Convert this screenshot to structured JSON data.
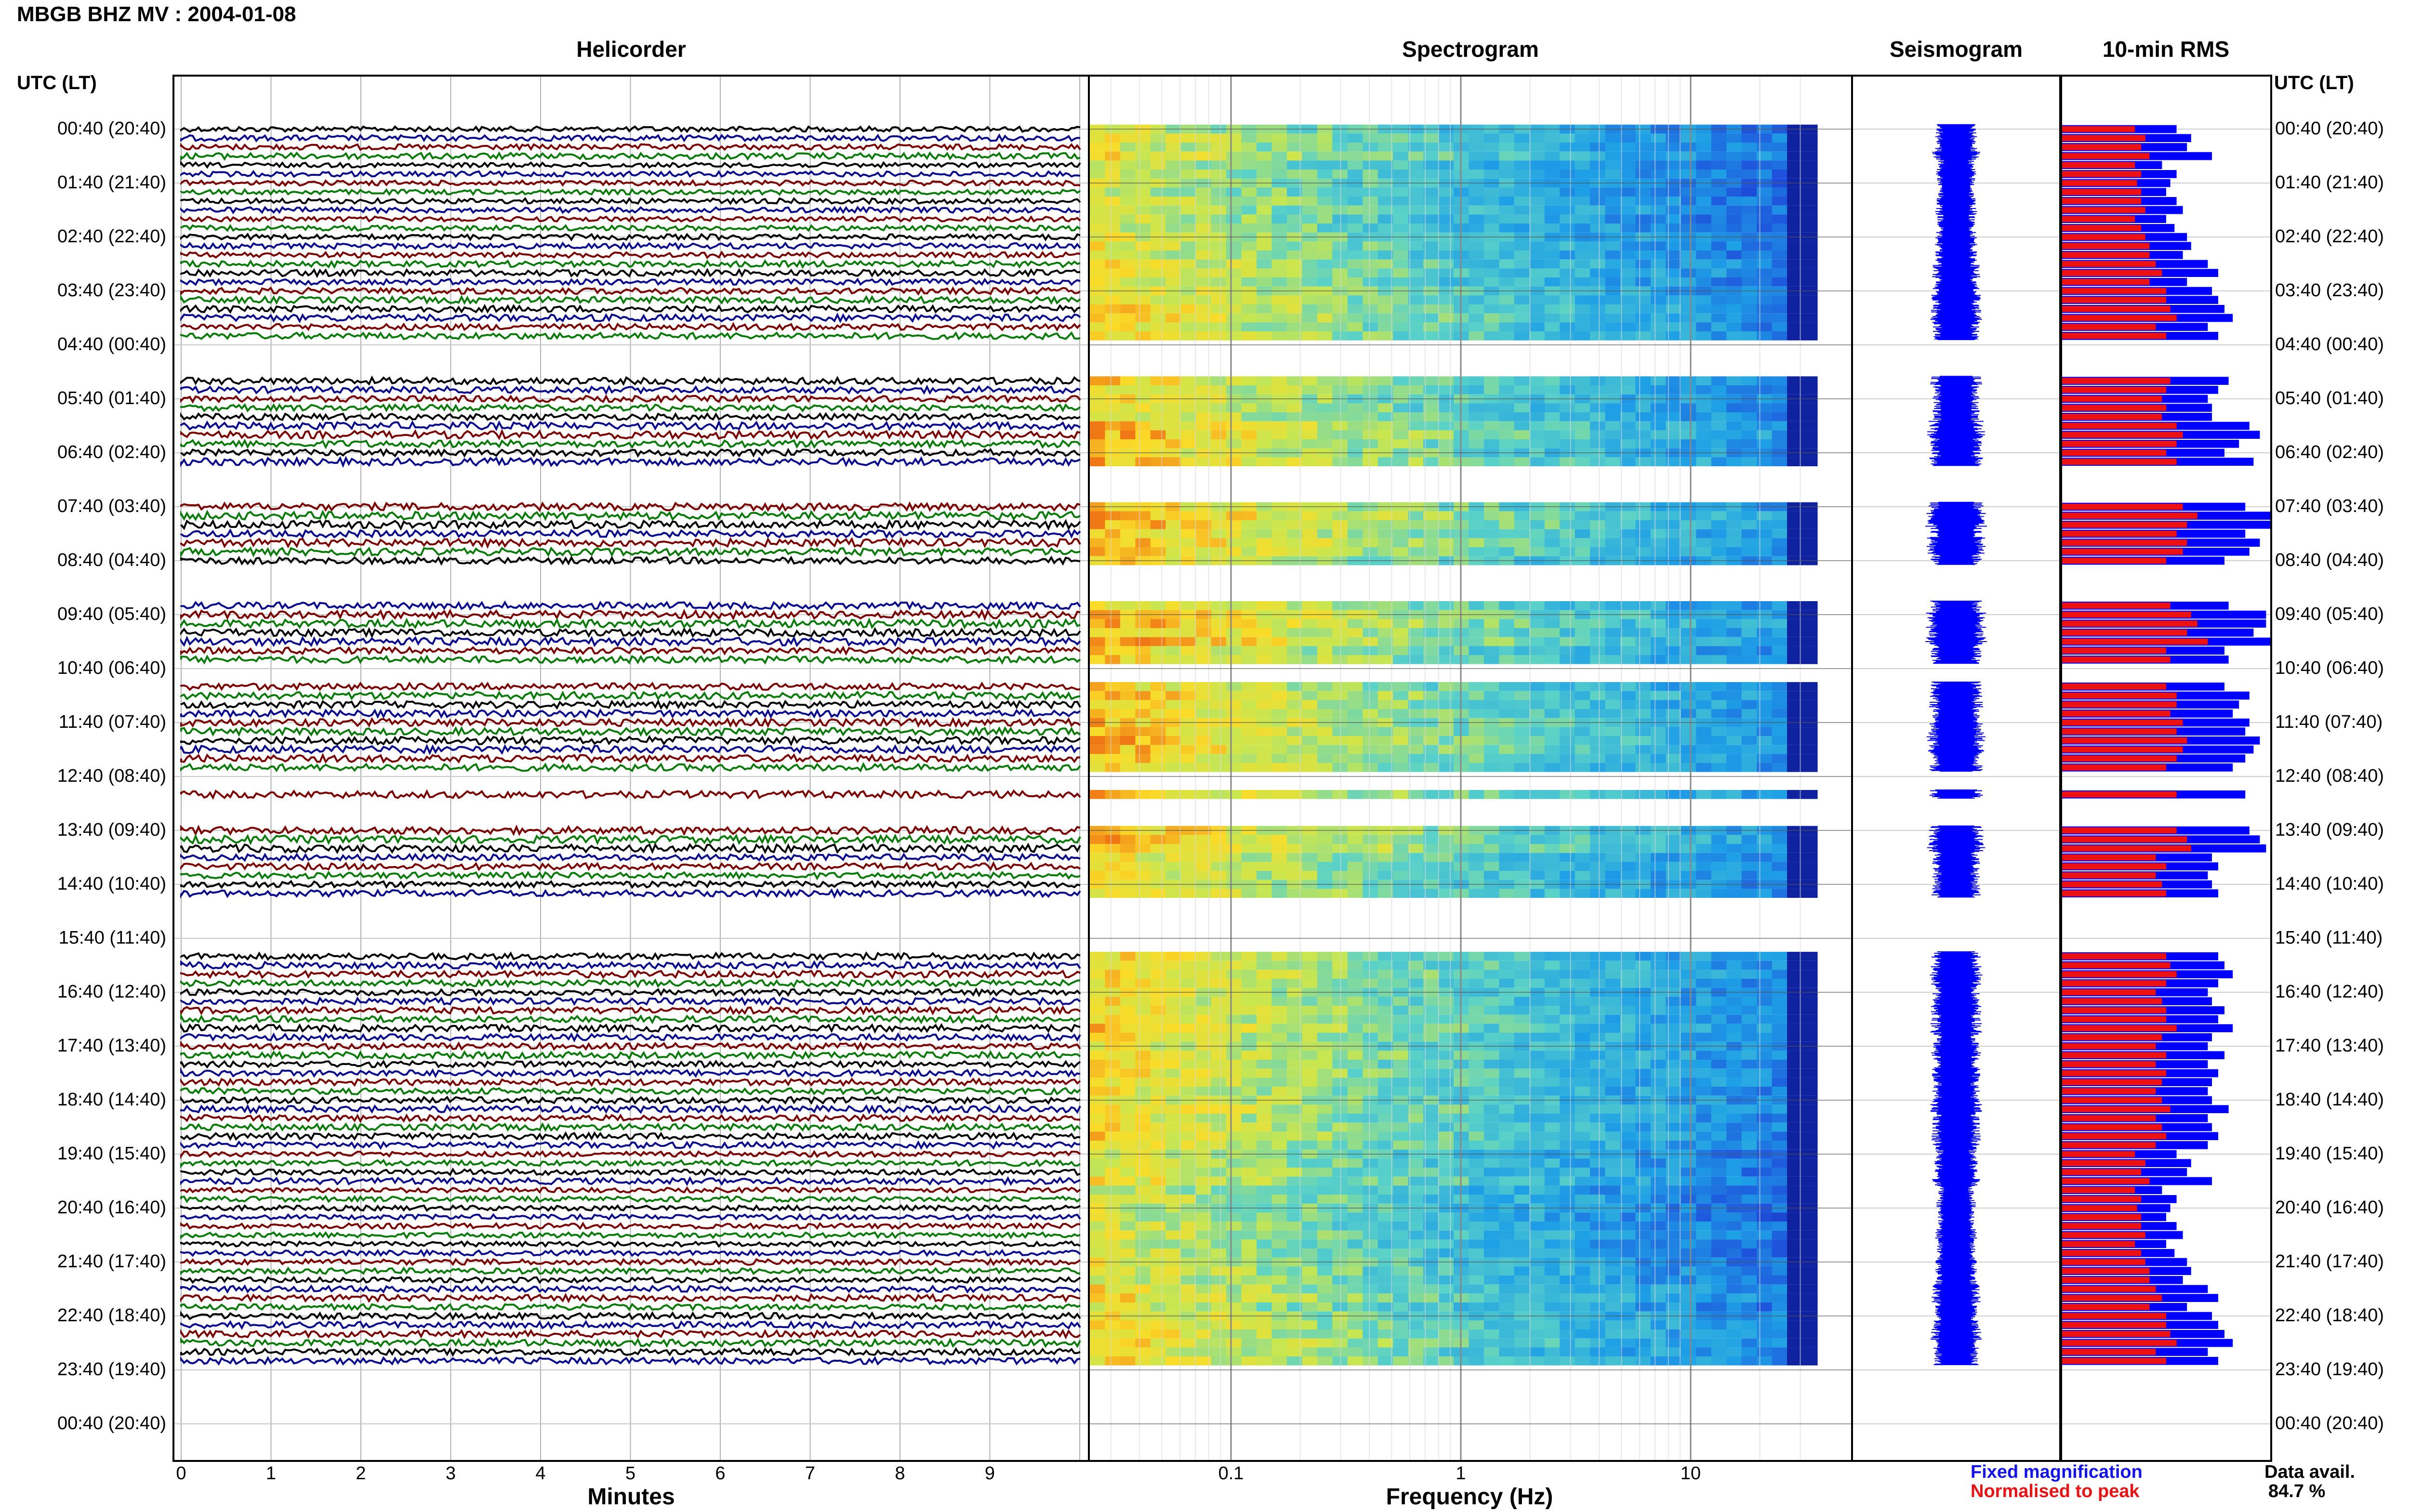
{
  "header": {
    "title": "MBGB BHZ MV : 2004-01-08"
  },
  "panels": {
    "helicorder": "Helicorder",
    "spectrogram": "Spectrogram",
    "seismogram": "Seismogram",
    "rms": "10-min RMS"
  },
  "time_axis": {
    "label": "UTC (LT)",
    "labels": [
      "00:40 (20:40)",
      "01:40 (21:40)",
      "02:40 (22:40)",
      "03:40 (23:40)",
      "04:40 (00:40)",
      "05:40 (01:40)",
      "06:40 (02:40)",
      "07:40 (03:40)",
      "08:40 (04:40)",
      "09:40 (05:40)",
      "10:40 (06:40)",
      "11:40 (07:40)",
      "12:40 (08:40)",
      "13:40 (09:40)",
      "14:40 (10:40)",
      "15:40 (11:40)",
      "16:40 (12:40)",
      "17:40 (13:40)",
      "18:40 (14:40)",
      "19:40 (15:40)",
      "20:40 (16:40)",
      "21:40 (17:40)",
      "22:40 (18:40)",
      "23:40 (19:40)",
      "00:40 (20:40)"
    ]
  },
  "helicorder_axis": {
    "label": "Minutes",
    "ticks": [
      "0",
      "1",
      "2",
      "3",
      "4",
      "5",
      "6",
      "7",
      "8",
      "9"
    ]
  },
  "spectrogram_axis": {
    "label": "Frequency (Hz)",
    "ticks": [
      "0.1",
      "1",
      "10"
    ]
  },
  "legend": {
    "fixed": "Fixed magnification",
    "normalised": "Normalised to peak",
    "fixed_color": "#1414e6",
    "normalised_color": "#e61414"
  },
  "data_avail": {
    "label": "Data avail.",
    "value": "84.7 %"
  },
  "colors": {
    "trace_black": "#000000",
    "trace_blue": "#0a0a8c",
    "trace_red": "#7a0000",
    "trace_green": "#0a7a0a",
    "rms_blue": "#0000ff",
    "rms_red": "#ee1111"
  },
  "chart_data": {
    "type": "heatmap",
    "title": "MBGB BHZ MV : 2004-01-08",
    "time_start_utc": "00:40",
    "time_end_utc": "00:40",
    "row_interval_minutes": 10,
    "data_gaps_utc": [
      [
        "04:40",
        "05:20"
      ],
      [
        "07:00",
        "07:40"
      ],
      [
        "08:50",
        "09:30"
      ],
      [
        "10:40",
        "11:00"
      ],
      [
        "12:40",
        "13:00"
      ],
      [
        "13:10",
        "13:40"
      ],
      [
        "15:00",
        "16:00"
      ],
      [
        "23:50",
        "00:40"
      ]
    ],
    "rms_fixed": [
      0.55,
      0.62,
      0.6,
      0.72,
      0.48,
      0.55,
      0.52,
      0.5,
      0.55,
      0.58,
      0.5,
      0.54,
      0.6,
      0.62,
      0.58,
      0.7,
      0.75,
      0.6,
      0.72,
      0.75,
      0.78,
      0.82,
      0.7,
      0.75,
      0.88,
      0.9,
      0.92,
      0.95,
      0.8,
      0.75,
      0.7,
      0.72,
      0.72,
      0.9,
      0.95,
      0.85,
      0.78,
      0.92,
      0.98,
      1.0,
      0.95,
      0.92,
      0.88,
      1.0,
      1.0,
      0.88,
      0.95,
      0.9,
      0.78,
      0.75,
      0.9,
      0.98,
      1.0,
      0.8,
      0.98,
      0.98,
      0.92,
      1.0,
      0.78,
      0.8,
      0.82,
      0.68,
      0.78,
      0.9,
      0.85,
      0.82,
      0.9,
      0.88,
      0.95,
      0.92,
      0.88,
      0.82,
      0.85,
      0.98,
      0.88,
      0.95,
      1.0,
      0.92,
      0.9,
      0.95,
      0.98,
      0.72,
      0.75,
      0.7,
      0.72,
      0.75,
      0.7,
      0.72,
      0.72,
      0.68,
      0.85,
      0.78,
      0.75,
      0.78,
      0.82,
      0.75,
      0.7,
      0.72,
      0.78,
      0.75,
      0.82,
      0.72,
      0.7,
      0.78,
      0.7,
      0.75,
      0.72,
      0.7,
      0.72,
      0.8,
      0.7,
      0.72,
      0.75,
      0.7
    ],
    "rms_normalised": [
      0.35,
      0.4,
      0.38,
      0.42,
      0.35,
      0.38,
      0.36,
      0.38,
      0.38,
      0.4,
      0.35,
      0.38,
      0.4,
      0.42,
      0.42,
      0.45,
      0.48,
      0.42,
      0.5,
      0.5,
      0.52,
      0.55,
      0.45,
      0.5,
      0.52,
      0.55,
      0.58,
      0.6,
      0.52,
      0.5,
      0.48,
      0.5,
      0.48,
      0.55,
      0.58,
      0.55,
      0.5,
      0.55,
      0.58,
      0.6,
      0.58,
      0.55,
      0.58,
      0.65,
      0.6,
      0.55,
      0.6,
      0.58,
      0.5,
      0.5,
      0.55,
      0.62,
      0.65,
      0.52,
      0.62,
      0.65,
      0.6,
      0.7,
      0.5,
      0.52,
      0.55,
      0.45,
      0.5,
      0.55,
      0.55,
      0.52,
      0.58,
      0.55,
      0.6,
      0.58,
      0.55,
      0.5,
      0.52,
      0.6,
      0.55,
      0.6,
      0.65,
      0.58,
      0.55,
      0.6,
      0.62,
      0.45,
      0.5,
      0.45,
      0.48,
      0.5,
      0.45,
      0.48,
      0.48,
      0.45,
      0.55,
      0.5,
      0.5,
      0.52,
      0.55,
      0.5,
      0.45,
      0.48,
      0.5,
      0.5,
      0.55,
      0.48,
      0.45,
      0.5,
      0.45,
      0.5,
      0.48,
      0.45,
      0.48,
      0.52,
      0.45,
      0.48,
      0.5,
      0.45
    ]
  }
}
